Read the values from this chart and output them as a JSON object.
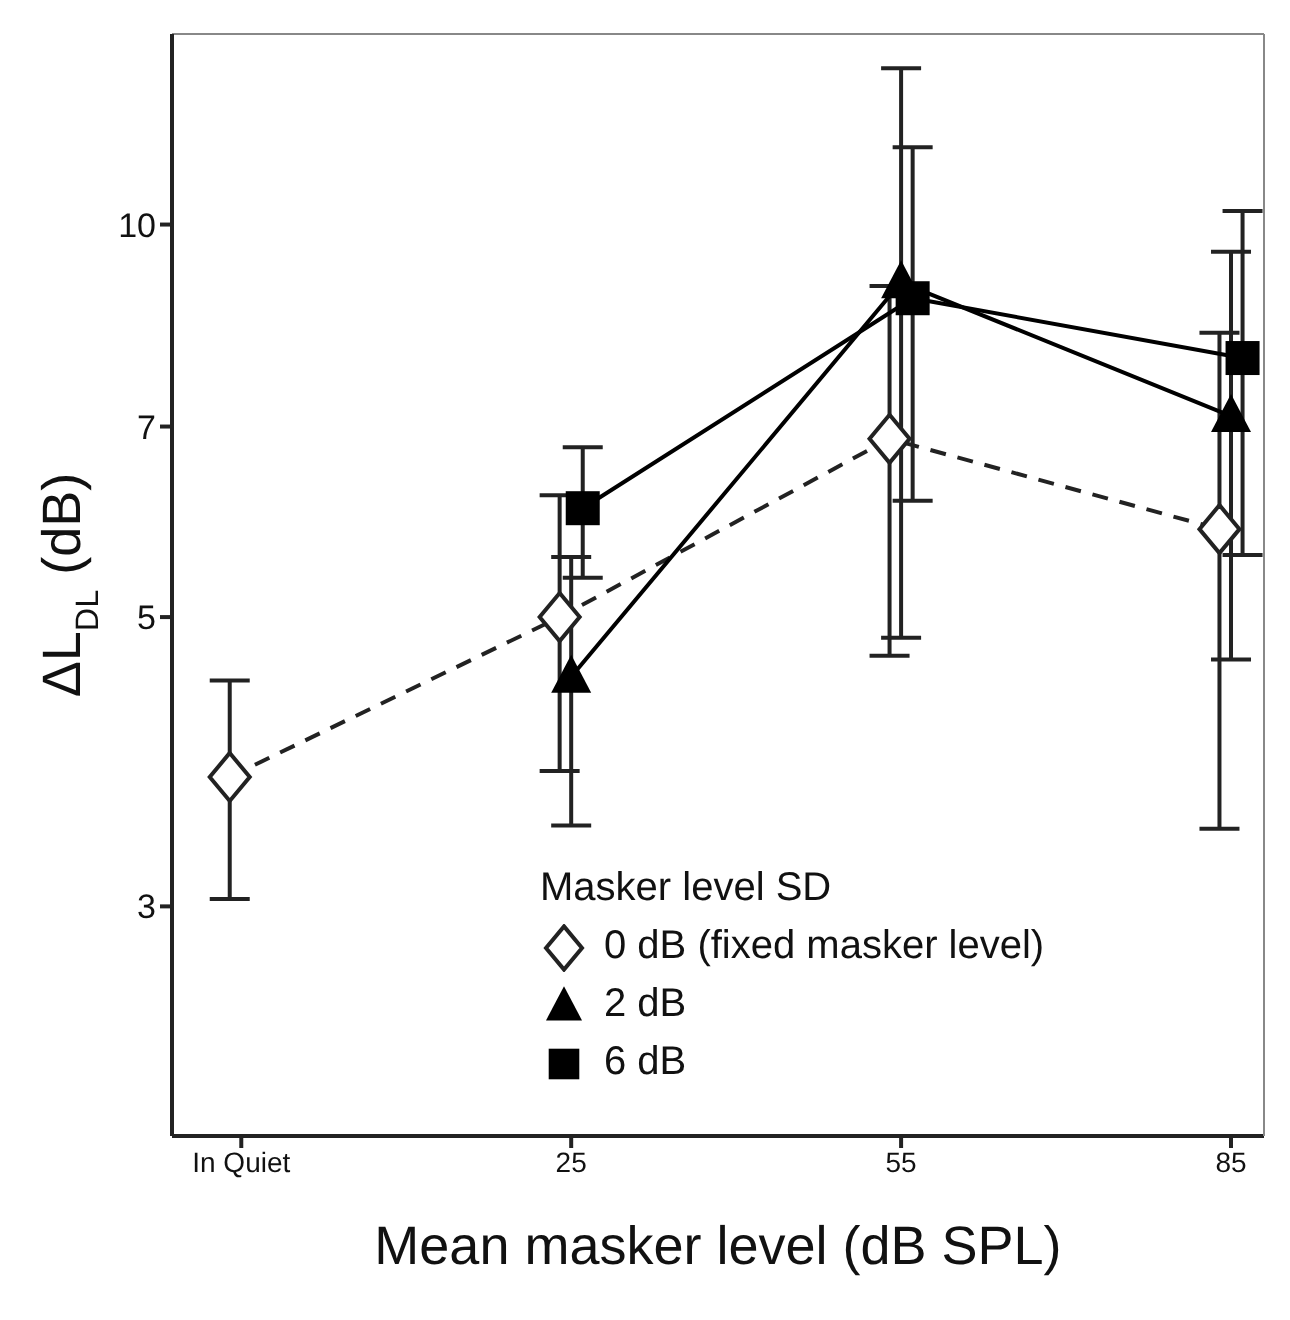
{
  "chart_data": {
    "type": "line",
    "categories": [
      "In Quiet",
      "25",
      "55",
      "85"
    ],
    "xlabel": "Mean masker level (dB SPL)",
    "ylabel": "ΔL$_{DL}$ (dB)",
    "legend_title": "Masker level SD",
    "legend": "bottom right",
    "log": "y",
    "ylim": [
      2,
      14
    ],
    "yticks": [
      3,
      5,
      7,
      10
    ],
    "series": [
      {
        "name": "0 dB (fixed masker level)",
        "color": "#222222",
        "marker": "diamond",
        "line_style": "dashed",
        "values": [
          3.77,
          5.0,
          6.85,
          5.84
        ],
        "errors": [
          [
            3.04,
            4.47
          ],
          [
            3.81,
            6.2
          ],
          [
            4.67,
            8.97
          ],
          [
            3.44,
            8.26
          ]
        ]
      },
      {
        "name": "2 dB",
        "color": "#000000",
        "marker": "triangle",
        "line_style": "solid",
        "values": [
          null,
          4.5,
          9.03,
          7.13
        ],
        "errors": [
          null,
          [
            3.46,
            5.56
          ],
          [
            4.82,
            13.18
          ],
          [
            4.64,
            9.53
          ]
        ]
      },
      {
        "name": "6 dB",
        "color": "#000000",
        "marker": "square",
        "line_style": "solid",
        "values": [
          null,
          6.06,
          8.78,
          7.9
        ],
        "errors": [
          null,
          [
            5.36,
            6.75
          ],
          [
            6.14,
            11.46
          ],
          [
            5.58,
            10.24
          ]
        ]
      }
    ]
  }
}
